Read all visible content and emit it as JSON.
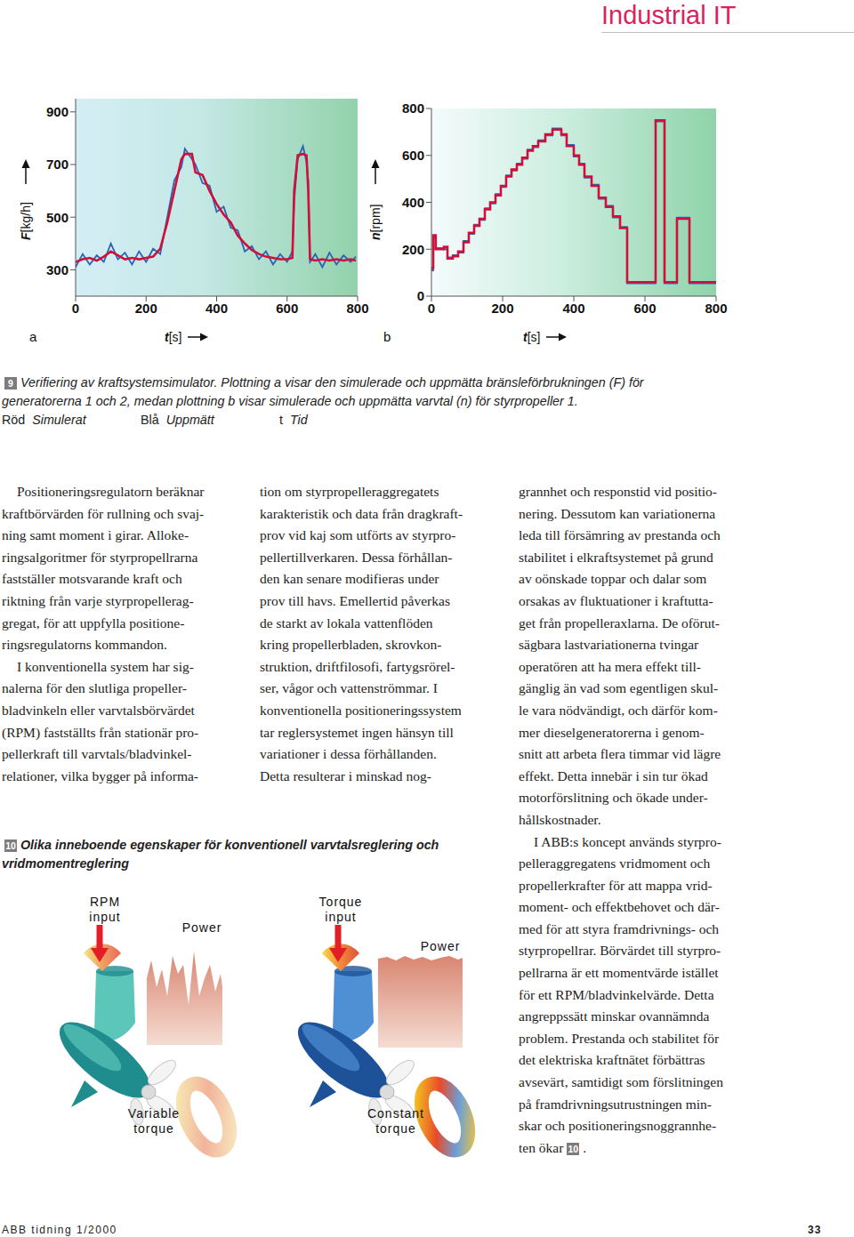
{
  "header": {
    "title": "Industrial IT"
  },
  "chart_data": [
    {
      "panel": "a",
      "type": "line",
      "x_label": "t[s]",
      "y_label": "F[kg/h]",
      "xlim": [
        0,
        800
      ],
      "xticks": [
        0,
        200,
        400,
        600,
        800
      ],
      "ylim": [
        200,
        950
      ],
      "yticks": [
        300,
        500,
        700,
        900
      ],
      "grid": false,
      "x": [
        0,
        20,
        40,
        60,
        80,
        100,
        120,
        140,
        160,
        180,
        200,
        220,
        240,
        260,
        280,
        300,
        310,
        330,
        340,
        360,
        380,
        400,
        420,
        440,
        460,
        480,
        500,
        520,
        540,
        560,
        580,
        600,
        615,
        620,
        630,
        645,
        655,
        660,
        665,
        680,
        700,
        720,
        740,
        760,
        780,
        795
      ],
      "series": [
        {
          "name": "Uppmätt",
          "color": "#2b63b5",
          "values": [
            310,
            360,
            320,
            355,
            330,
            400,
            340,
            365,
            320,
            370,
            330,
            380,
            360,
            500,
            640,
            690,
            760,
            720,
            700,
            630,
            620,
            520,
            540,
            460,
            450,
            370,
            390,
            340,
            370,
            320,
            360,
            330,
            370,
            560,
            720,
            770,
            710,
            640,
            330,
            360,
            310,
            365,
            320,
            355,
            330,
            350
          ]
        },
        {
          "name": "Simulerat",
          "color": "#d0103a",
          "values": [
            330,
            340,
            345,
            335,
            350,
            370,
            355,
            340,
            345,
            340,
            345,
            350,
            380,
            480,
            600,
            720,
            740,
            740,
            670,
            660,
            600,
            550,
            510,
            480,
            430,
            400,
            375,
            360,
            350,
            345,
            340,
            340,
            345,
            600,
            735,
            740,
            735,
            600,
            340,
            335,
            340,
            335,
            340,
            335,
            340,
            335
          ]
        }
      ]
    },
    {
      "panel": "b",
      "type": "line",
      "line_style": "step",
      "x_label": "t[s]",
      "y_label": "n[rpm]",
      "xlim": [
        0,
        800
      ],
      "xticks": [
        0,
        200,
        400,
        600,
        800
      ],
      "ylim": [
        0,
        800
      ],
      "yticks": [
        0,
        200,
        400,
        600,
        800
      ],
      "grid": false,
      "x": [
        0,
        5,
        12,
        35,
        45,
        60,
        75,
        90,
        105,
        120,
        135,
        150,
        165,
        180,
        195,
        210,
        225,
        240,
        255,
        270,
        285,
        300,
        320,
        340,
        365,
        380,
        400,
        415,
        430,
        450,
        470,
        490,
        510,
        530,
        550,
        630,
        655,
        690,
        725,
        800
      ],
      "series": [
        {
          "name": "Uppmätt",
          "color": "#2b63b5",
          "values": [
            110,
            250,
            205,
            200,
            165,
            175,
            185,
            235,
            265,
            305,
            325,
            375,
            395,
            435,
            465,
            515,
            535,
            565,
            585,
            625,
            635,
            665,
            685,
            715,
            685,
            645,
            595,
            565,
            505,
            475,
            415,
            385,
            335,
            295,
            55,
            745,
            55,
            335,
            55,
            55
          ]
        },
        {
          "name": "Simulerat",
          "color": "#d0103a",
          "values": [
            120,
            260,
            200,
            210,
            160,
            170,
            190,
            230,
            270,
            300,
            330,
            370,
            400,
            430,
            470,
            510,
            540,
            560,
            590,
            620,
            640,
            660,
            690,
            710,
            690,
            640,
            600,
            560,
            510,
            470,
            420,
            380,
            340,
            290,
            60,
            750,
            60,
            330,
            60,
            60
          ]
        }
      ]
    }
  ],
  "figure9": {
    "number": "9",
    "caption": [
      "Verifiering av kraftsystemsimulator. Plottning a visar den simulerade och uppmätta bränsleförbrukningen (F) för",
      "generatorerna 1 och 2, medan plottning b visar simulerade och uppmätta varvtal (n) för styrpropeller 1."
    ],
    "key": [
      {
        "abbr": "Röd",
        "text": "Simulerat"
      },
      {
        "abbr": "Blå",
        "text": "Uppmätt"
      },
      {
        "abbr": "t",
        "text": "Tid"
      }
    ]
  },
  "body": {
    "columns": [
      [
        [
          "Positioneringsregulatorn beräknar",
          "kraftbörvärden för rullning och svaj-",
          "ning samt moment i girar. Alloke-",
          "ringsalgoritmer för styrpropellrarna",
          "fastställer motsvarande kraft och",
          "riktning från varje styrpropellerag-",
          "gregat, för att uppfylla positione-",
          "ringsregulatorns kommandon."
        ],
        [
          "I konventionella system har sig-",
          "nalerna för den slutliga propeller-",
          "bladvinkeln eller varvtalsbörvärdet",
          "(RPM) fastställts från stationär pro-",
          "pellerkraft till varvtals/bladvinkel-",
          "relationer, vilka bygger på informa-"
        ]
      ],
      [
        [
          "tion om styrpropelleraggregatets",
          "karakteristik och data från dragkraft-",
          "prov vid kaj som utförts av styrpro-",
          "pellertillverkaren. Dessa förhållan-",
          "den kan senare modifieras under",
          "prov till havs. Emellertid påverkas",
          "de starkt av lokala vattenflöden",
          "kring propellerbladen, skrovkon-",
          "struktion, driftfilosofi, fartygsrörel-",
          "ser, vågor och vattenströmmar. I",
          "konventionella positioneringssystem",
          "tar reglersystemet ingen hänsyn till",
          "variationer i dessa förhållanden.",
          "Detta resulterar i minskad nog-"
        ]
      ],
      [
        [
          "grannhet och responstid vid positio-",
          "nering. Dessutom kan variationerna",
          "leda till försämring av prestanda och",
          "stabilitet i elkraftsystemet på grund",
          "av oönskade toppar och dalar som",
          "orsakas av fluktuationer i kraftutta-",
          "get från propelleraxlarna. De oförut-",
          "sägbara lastvariationerna tvingar",
          "operatören att ha mera effekt till-",
          "gänglig än vad som egentligen skul-",
          "le vara nödvändigt, och därför kom-",
          "mer dieselgeneratorerna i genom-",
          "snitt att arbeta flera timmar vid lägre",
          "effekt. Detta innebär i sin tur ökad",
          "motorförslitning och ökade under-",
          "hållskostnader."
        ],
        [
          "I ABB:s koncept används styrpro-",
          "pelleraggregatens vridmoment och",
          "propellerkrafter för att mappa vrid-",
          "moment- och effektbehovet och där-",
          "med för att styra framdrivnings- och",
          "styrpropellrar. Börvärdet till styrpro-",
          "pellrarna är ett momentvärde istället",
          "för ett RPM/bladvinkelvärde. Detta",
          "angreppssätt minskar ovannämnda",
          "problem. Prestanda och stabilitet för",
          "det elektriska kraftnätet förbättras",
          "avsevärt, samtidigt som förslitningen",
          "på framdrivningsutrustningen min-",
          "skar och positioneringsnoggrannhe-",
          {
            "parts": [
              "ten ökar ",
              {
                "box": "10"
              },
              "."
            ]
          }
        ]
      ]
    ]
  },
  "figure10": {
    "number": "10",
    "caption": [
      "Olika inneboende egenskaper för konventionell varvtalsreglering och",
      "vridmomentreglering"
    ],
    "left": {
      "input": [
        "RPM",
        "input"
      ],
      "output": "Power",
      "torque": [
        "Variable",
        "torque"
      ]
    },
    "right": {
      "input": [
        "Torque",
        "input"
      ],
      "output": "Power",
      "torque": [
        "Constant",
        "torque"
      ]
    }
  },
  "footer": {
    "publication": "ABB tidning 1/2000",
    "page": "33"
  }
}
